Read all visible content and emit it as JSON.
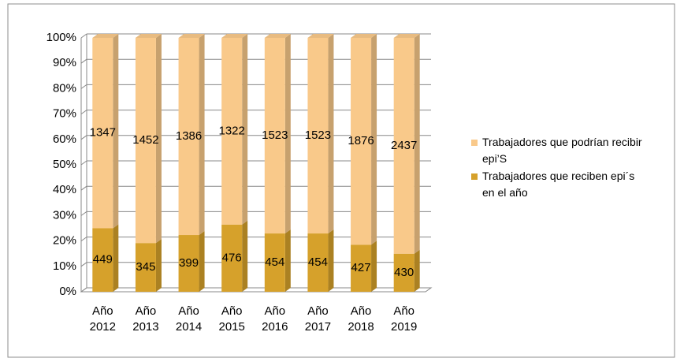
{
  "chart_data": {
    "type": "bar",
    "stacked": "percent",
    "categories": [
      "Año 2012",
      "Año 2013",
      "Año 2014",
      "Año 2015",
      "Año 2016",
      "Año 2017",
      "Año 2018",
      "Año 2019"
    ],
    "series": [
      {
        "name": "Trabajadores que podrían recibir epi’S",
        "color": "#f9c98a",
        "values": [
          1347,
          1452,
          1386,
          1322,
          1523,
          1523,
          1876,
          2437
        ]
      },
      {
        "name": "Trabajadores que reciben epi´s en el año",
        "color": "#d6a12b",
        "values": [
          449,
          345,
          399,
          476,
          454,
          454,
          427,
          430
        ]
      }
    ],
    "ylim": [
      0,
      100
    ],
    "yticks": [
      {
        "value": 0,
        "label": "0%"
      },
      {
        "value": 10,
        "label": "10%"
      },
      {
        "value": 20,
        "label": "20%"
      },
      {
        "value": 30,
        "label": "30%"
      },
      {
        "value": 40,
        "label": "40%"
      },
      {
        "value": 50,
        "label": "50%"
      },
      {
        "value": 60,
        "label": "60%"
      },
      {
        "value": 70,
        "label": "70%"
      },
      {
        "value": 80,
        "label": "80%"
      },
      {
        "value": 90,
        "label": "90%"
      },
      {
        "value": 100,
        "label": "100%"
      }
    ],
    "grid": true,
    "legend": "right"
  }
}
